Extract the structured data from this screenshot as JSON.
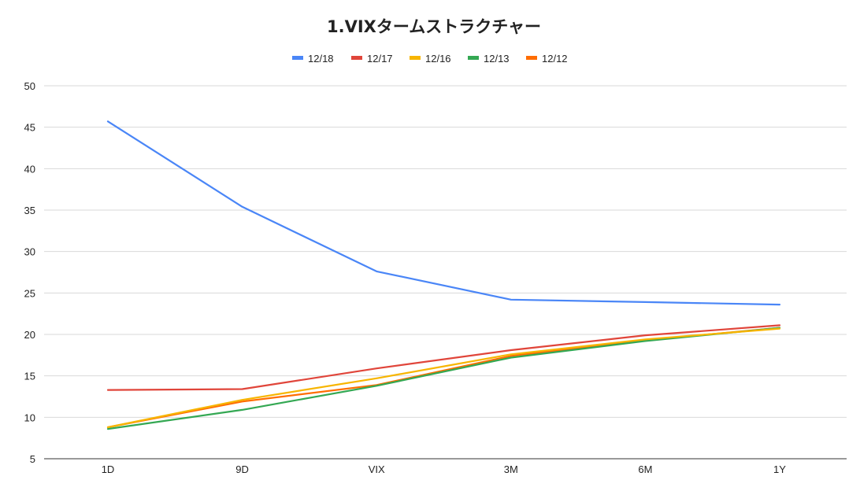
{
  "chart_data": {
    "type": "line",
    "title": "1.VIXタームストラクチャー",
    "xlabel": "",
    "ylabel": "",
    "categories": [
      "1D",
      "9D",
      "VIX",
      "3M",
      "6M",
      "1Y"
    ],
    "ylim": [
      5,
      50
    ],
    "yticks": [
      5,
      10,
      15,
      20,
      25,
      30,
      35,
      40,
      45,
      50
    ],
    "grid": true,
    "legend_position": "top",
    "series": [
      {
        "name": "12/18",
        "color": "#4a86f7",
        "values": [
          45.7,
          35.4,
          27.6,
          24.2,
          23.9,
          23.6
        ]
      },
      {
        "name": "12/17",
        "color": "#e0453a",
        "values": [
          13.3,
          13.4,
          15.9,
          18.1,
          19.9,
          21.1
        ]
      },
      {
        "name": "12/16",
        "color": "#f7b500",
        "values": [
          8.8,
          12.1,
          14.7,
          17.6,
          19.4,
          20.7
        ]
      },
      {
        "name": "12/13",
        "color": "#34a853",
        "values": [
          8.6,
          10.9,
          13.8,
          17.2,
          19.2,
          20.8
        ]
      },
      {
        "name": "12/12",
        "color": "#ff6d00",
        "values": [
          8.8,
          11.9,
          13.9,
          17.4,
          19.3,
          20.8
        ]
      }
    ]
  }
}
